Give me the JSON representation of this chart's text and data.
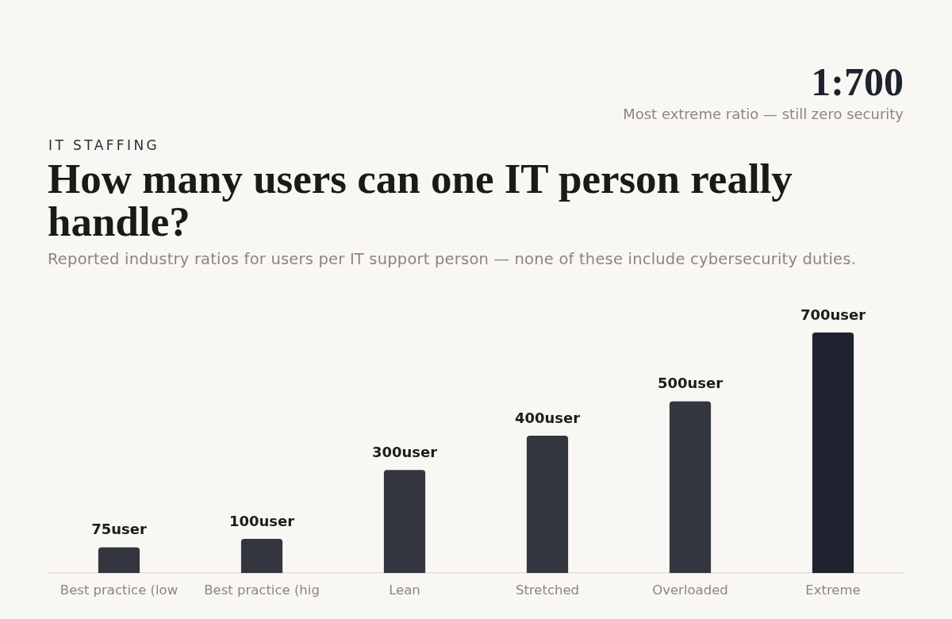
{
  "chart_data": {
    "type": "bar",
    "title": "How many users can one IT person really handle?",
    "subtitle": "Reported industry ratios for users per IT support person — none of these include cybersecurity duties.",
    "annotations": [
      "IT STAFFING",
      "1:700",
      "Most extreme ratio — still zero security"
    ],
    "categories": [
      "Best practice (low",
      "Best practice (hig",
      "Lean",
      "Stretched",
      "Overloaded",
      "Extreme"
    ],
    "values": [
      75,
      100,
      300,
      400,
      500,
      700
    ],
    "value_labels": [
      "75user",
      "100user",
      "300user",
      "400user",
      "500user",
      "700user"
    ],
    "colors": [
      "#34363f",
      "#34363f",
      "#34363f",
      "#34363f",
      "#34363f",
      "#1f2330"
    ],
    "ylim": [
      0,
      700
    ],
    "tick_labels": "x"
  }
}
